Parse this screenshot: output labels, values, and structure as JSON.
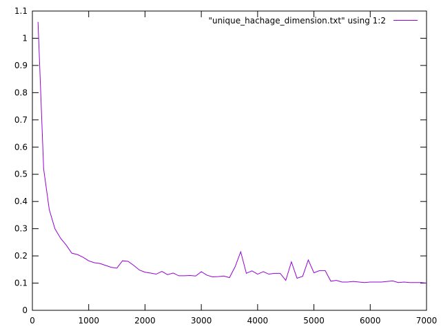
{
  "chart_data": {
    "type": "line",
    "title": "",
    "xlabel": "",
    "ylabel": "",
    "xlim": [
      0,
      7000
    ],
    "ylim": [
      0,
      1.1
    ],
    "grid": false,
    "legend_position": "top-right",
    "x_ticks": [
      0,
      1000,
      2000,
      3000,
      4000,
      5000,
      6000,
      7000
    ],
    "x_tick_labels": [
      "0",
      "1000",
      "2000",
      "3000",
      "4000",
      "5000",
      "6000",
      "7000"
    ],
    "y_ticks": [
      0,
      0.1,
      0.2,
      0.3,
      0.4,
      0.5,
      0.6,
      0.7,
      0.8,
      0.9,
      1,
      1.1
    ],
    "y_tick_labels": [
      "0",
      "0.1",
      "0.2",
      "0.3",
      "0.4",
      "0.5",
      "0.6",
      "0.7",
      "0.8",
      "0.9",
      "1",
      "1.1"
    ],
    "series": [
      {
        "name": "\"unique_hachage_dimension.txt\" using 1:2",
        "color": "#9400d3",
        "x": [
          100,
          200,
          300,
          400,
          500,
          600,
          700,
          800,
          900,
          1000,
          1100,
          1200,
          1300,
          1400,
          1500,
          1600,
          1700,
          1800,
          1900,
          2000,
          2100,
          2200,
          2300,
          2400,
          2500,
          2600,
          2700,
          2800,
          2900,
          3000,
          3100,
          3200,
          3300,
          3400,
          3500,
          3600,
          3700,
          3800,
          3900,
          4000,
          4100,
          4200,
          4300,
          4400,
          4500,
          4600,
          4700,
          4800,
          4900,
          5000,
          5100,
          5200,
          5300,
          5400,
          5500,
          5600,
          5700,
          5800,
          5900,
          6000,
          6100,
          6200,
          6300,
          6400,
          6500,
          6600,
          6700,
          6800,
          6900,
          7000
        ],
        "y": [
          1.06,
          0.52,
          0.37,
          0.3,
          0.265,
          0.24,
          0.21,
          0.205,
          0.195,
          0.182,
          0.175,
          0.172,
          0.165,
          0.158,
          0.155,
          0.182,
          0.18,
          0.165,
          0.148,
          0.14,
          0.137,
          0.133,
          0.143,
          0.131,
          0.137,
          0.127,
          0.127,
          0.128,
          0.126,
          0.142,
          0.129,
          0.123,
          0.124,
          0.126,
          0.12,
          0.16,
          0.215,
          0.136,
          0.145,
          0.133,
          0.142,
          0.133,
          0.136,
          0.136,
          0.11,
          0.178,
          0.118,
          0.125,
          0.185,
          0.138,
          0.146,
          0.146,
          0.107,
          0.11,
          0.104,
          0.104,
          0.106,
          0.104,
          0.102,
          0.104,
          0.104,
          0.104,
          0.106,
          0.108,
          0.102,
          0.104,
          0.102,
          0.102,
          0.102,
          0.1
        ]
      }
    ]
  }
}
